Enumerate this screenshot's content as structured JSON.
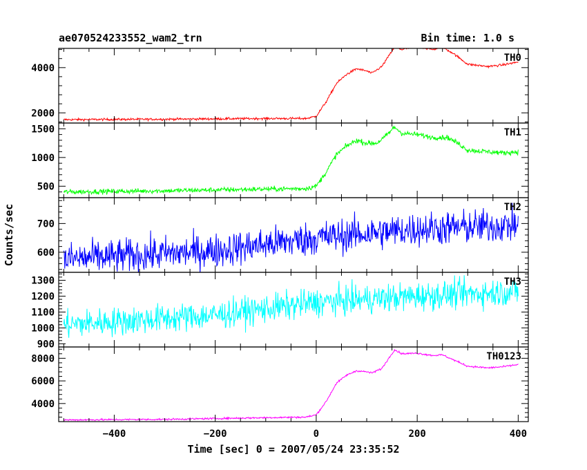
{
  "chart_data": {
    "type": "line",
    "title": "ae070524233552_wam2_trn",
    "subtitle": "Bin time: 1.0 s",
    "xlabel": "Time [sec] 0 = 2007/05/24 23:35:52",
    "ylabel": "Counts/sec",
    "xlim": [
      -510,
      420
    ],
    "x_ticks": [
      -400,
      -200,
      0,
      200,
      400
    ],
    "x_tick_labels": [
      "−400",
      "−200",
      "0",
      "200",
      "400"
    ],
    "grid": false,
    "panels": [
      {
        "name": "TH0",
        "color": "#ff0000",
        "ylim": [
          1550,
          4850
        ],
        "y_ticks": [
          2000,
          4000
        ],
        "y_tick_labels": [
          "2000",
          "4000"
        ],
        "noise": 25,
        "profile": [
          [
            -500,
            1700
          ],
          [
            -300,
            1720
          ],
          [
            -100,
            1750
          ],
          [
            -20,
            1750
          ],
          [
            0,
            1850
          ],
          [
            20,
            2500
          ],
          [
            40,
            3300
          ],
          [
            60,
            3700
          ],
          [
            80,
            3950
          ],
          [
            100,
            3850
          ],
          [
            110,
            3750
          ],
          [
            130,
            4050
          ],
          [
            155,
            4900
          ],
          [
            170,
            4800
          ],
          [
            200,
            4950
          ],
          [
            230,
            4800
          ],
          [
            250,
            4900
          ],
          [
            270,
            4650
          ],
          [
            300,
            4150
          ],
          [
            340,
            4050
          ],
          [
            370,
            4120
          ],
          [
            400,
            4250
          ]
        ]
      },
      {
        "name": "TH1",
        "color": "#00ff00",
        "ylim": [
          300,
          1600
        ],
        "y_ticks": [
          500,
          1000,
          1500
        ],
        "y_tick_labels": [
          "500",
          "1000",
          "1500"
        ],
        "noise": 22,
        "profile": [
          [
            -500,
            400
          ],
          [
            -300,
            420
          ],
          [
            -100,
            450
          ],
          [
            -20,
            460
          ],
          [
            0,
            500
          ],
          [
            20,
            750
          ],
          [
            40,
            1050
          ],
          [
            60,
            1200
          ],
          [
            80,
            1300
          ],
          [
            100,
            1250
          ],
          [
            120,
            1250
          ],
          [
            135,
            1350
          ],
          [
            155,
            1530
          ],
          [
            170,
            1420
          ],
          [
            200,
            1400
          ],
          [
            230,
            1350
          ],
          [
            260,
            1350
          ],
          [
            280,
            1250
          ],
          [
            300,
            1130
          ],
          [
            340,
            1100
          ],
          [
            370,
            1080
          ],
          [
            400,
            1100
          ]
        ]
      },
      {
        "name": "TH2",
        "color": "#0000ff",
        "ylim": [
          530,
          790
        ],
        "y_ticks": [
          600,
          700
        ],
        "y_tick_labels": [
          "600",
          "700"
        ],
        "noise": 30,
        "profile": [
          [
            -500,
            575
          ],
          [
            -200,
            605
          ],
          [
            0,
            650
          ],
          [
            200,
            680
          ],
          [
            400,
            695
          ]
        ]
      },
      {
        "name": "TH3",
        "color": "#00ffff",
        "ylim": [
          880,
          1350
        ],
        "y_ticks": [
          900,
          1000,
          1100,
          1200,
          1300
        ],
        "y_tick_labels": [
          "900",
          "1000",
          "1100",
          "1200",
          "1300"
        ],
        "noise": 45,
        "profile": [
          [
            -500,
            1020
          ],
          [
            -200,
            1080
          ],
          [
            0,
            1160
          ],
          [
            200,
            1200
          ],
          [
            400,
            1230
          ]
        ]
      },
      {
        "name": "TH0123",
        "color": "#ff00ff",
        "ylim": [
          2400,
          9000
        ],
        "y_ticks": [
          4000,
          6000,
          8000
        ],
        "y_tick_labels": [
          "4000",
          "6000",
          "8000"
        ],
        "noise": 40,
        "profile": [
          [
            -500,
            2550
          ],
          [
            -300,
            2600
          ],
          [
            -100,
            2750
          ],
          [
            -20,
            2800
          ],
          [
            0,
            3000
          ],
          [
            20,
            4200
          ],
          [
            40,
            5800
          ],
          [
            60,
            6500
          ],
          [
            80,
            6900
          ],
          [
            100,
            6800
          ],
          [
            110,
            6700
          ],
          [
            130,
            7100
          ],
          [
            155,
            8750
          ],
          [
            170,
            8400
          ],
          [
            200,
            8450
          ],
          [
            230,
            8250
          ],
          [
            250,
            8300
          ],
          [
            270,
            7900
          ],
          [
            300,
            7300
          ],
          [
            340,
            7150
          ],
          [
            370,
            7250
          ],
          [
            400,
            7450
          ]
        ]
      }
    ]
  }
}
